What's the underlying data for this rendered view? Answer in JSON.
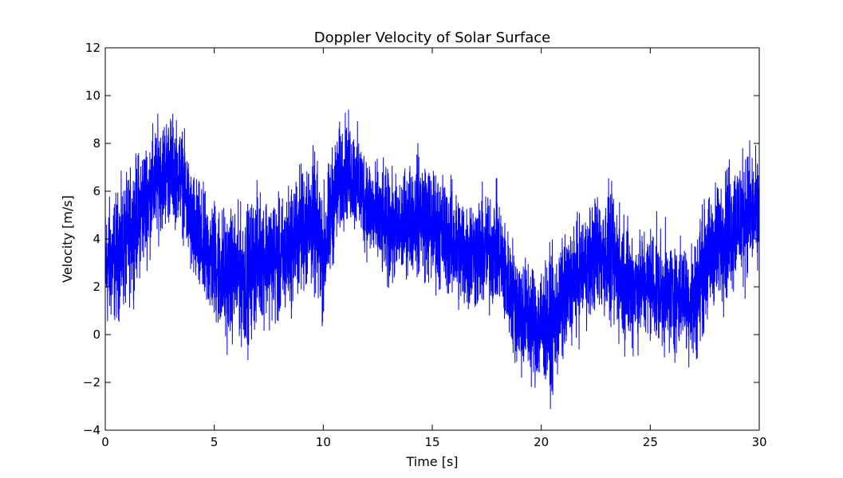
{
  "chart_data": {
    "type": "line",
    "title": "Doppler Velocity of Solar Surface",
    "xlabel": "Time [s]",
    "ylabel": "Velocity [m/s]",
    "xlim": [
      0,
      30
    ],
    "ylim": [
      -4,
      12
    ],
    "x_ticks": [
      0,
      5,
      10,
      15,
      20,
      25,
      30
    ],
    "y_ticks": [
      -4,
      -2,
      0,
      2,
      4,
      6,
      8,
      10,
      12
    ],
    "y_tick_labels": [
      "−4",
      "−2",
      "0",
      "2",
      "4",
      "6",
      "8",
      "10",
      "12"
    ],
    "grid": false,
    "series": [
      {
        "color": "#0000ff",
        "envelope": [
          {
            "x": 0.0,
            "min": -0.8,
            "max": 6.4
          },
          {
            "x": 0.5,
            "min": -0.3,
            "max": 6.8
          },
          {
            "x": 1.0,
            "min": 0.3,
            "max": 7.4
          },
          {
            "x": 1.5,
            "min": 1.5,
            "max": 8.5
          },
          {
            "x": 2.0,
            "min": 2.5,
            "max": 9.2
          },
          {
            "x": 2.5,
            "min": 3.5,
            "max": 9.8
          },
          {
            "x": 3.0,
            "min": 4.0,
            "max": 10.0
          },
          {
            "x": 3.5,
            "min": 3.8,
            "max": 9.4
          },
          {
            "x": 4.0,
            "min": 1.2,
            "max": 7.6
          },
          {
            "x": 4.5,
            "min": 0.2,
            "max": 6.8
          },
          {
            "x": 5.0,
            "min": -0.4,
            "max": 6.6
          },
          {
            "x": 5.5,
            "min": -1.4,
            "max": 6.2
          },
          {
            "x": 6.0,
            "min": -0.8,
            "max": 6.0
          },
          {
            "x": 6.5,
            "min": -1.6,
            "max": 6.3
          },
          {
            "x": 7.0,
            "min": -0.3,
            "max": 7.0
          },
          {
            "x": 7.5,
            "min": -0.2,
            "max": 6.8
          },
          {
            "x": 8.0,
            "min": -0.6,
            "max": 6.4
          },
          {
            "x": 8.5,
            "min": 0.2,
            "max": 7.2
          },
          {
            "x": 9.0,
            "min": 0.8,
            "max": 8.0
          },
          {
            "x": 9.5,
            "min": 1.0,
            "max": 8.6
          },
          {
            "x": 10.0,
            "min": -0.5,
            "max": 7.0
          },
          {
            "x": 10.5,
            "min": 2.5,
            "max": 9.0
          },
          {
            "x": 11.0,
            "min": 4.0,
            "max": 9.9
          },
          {
            "x": 11.5,
            "min": 3.5,
            "max": 9.4
          },
          {
            "x": 12.0,
            "min": 2.6,
            "max": 8.5
          },
          {
            "x": 12.5,
            "min": 1.8,
            "max": 7.8
          },
          {
            "x": 13.0,
            "min": 1.2,
            "max": 7.6
          },
          {
            "x": 13.5,
            "min": 1.5,
            "max": 7.2
          },
          {
            "x": 14.0,
            "min": 2.0,
            "max": 8.0
          },
          {
            "x": 14.5,
            "min": 1.5,
            "max": 8.7
          },
          {
            "x": 15.0,
            "min": 1.2,
            "max": 7.8
          },
          {
            "x": 15.5,
            "min": 1.0,
            "max": 7.6
          },
          {
            "x": 16.0,
            "min": 0.5,
            "max": 7.0
          },
          {
            "x": 16.5,
            "min": 0.0,
            "max": 6.8
          },
          {
            "x": 17.0,
            "min": 0.2,
            "max": 6.6
          },
          {
            "x": 17.5,
            "min": 0.0,
            "max": 6.9
          },
          {
            "x": 18.0,
            "min": 0.5,
            "max": 6.8
          },
          {
            "x": 18.5,
            "min": -1.0,
            "max": 5.0
          },
          {
            "x": 19.0,
            "min": -2.5,
            "max": 4.5
          },
          {
            "x": 19.5,
            "min": -2.8,
            "max": 4.0
          },
          {
            "x": 20.0,
            "min": -3.0,
            "max": 3.8
          },
          {
            "x": 20.5,
            "min": -3.5,
            "max": 4.2
          },
          {
            "x": 21.0,
            "min": -2.0,
            "max": 4.8
          },
          {
            "x": 21.5,
            "min": -1.0,
            "max": 5.5
          },
          {
            "x": 22.0,
            "min": -0.4,
            "max": 6.0
          },
          {
            "x": 22.5,
            "min": 0.2,
            "max": 6.6
          },
          {
            "x": 23.0,
            "min": -0.5,
            "max": 7.0
          },
          {
            "x": 23.5,
            "min": -1.0,
            "max": 6.5
          },
          {
            "x": 24.0,
            "min": -1.5,
            "max": 5.8
          },
          {
            "x": 24.5,
            "min": -1.2,
            "max": 5.2
          },
          {
            "x": 25.0,
            "min": -1.0,
            "max": 5.4
          },
          {
            "x": 25.5,
            "min": -1.4,
            "max": 5.0
          },
          {
            "x": 26.0,
            "min": -1.6,
            "max": 4.8
          },
          {
            "x": 26.5,
            "min": -1.2,
            "max": 4.6
          },
          {
            "x": 27.0,
            "min": -2.2,
            "max": 4.8
          },
          {
            "x": 27.5,
            "min": -0.5,
            "max": 6.4
          },
          {
            "x": 28.0,
            "min": 0.2,
            "max": 7.2
          },
          {
            "x": 28.5,
            "min": 0.5,
            "max": 8.2
          },
          {
            "x": 29.0,
            "min": 1.0,
            "max": 8.5
          },
          {
            "x": 29.5,
            "min": 1.5,
            "max": 8.8
          },
          {
            "x": 30.0,
            "min": 2.0,
            "max": 7.8
          }
        ]
      }
    ]
  }
}
